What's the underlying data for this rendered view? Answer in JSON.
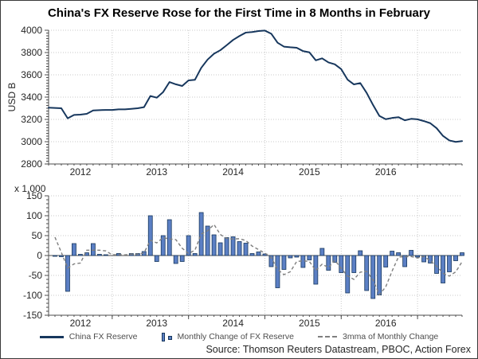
{
  "title": "China's FX Reserve Rose for the First Time in 8 Months in February",
  "source_note": "Source: Thomson Reuters Datastream, PBOC, Action Forex",
  "colors": {
    "reserve_line": "#17375D",
    "bar_fill": "#5B7FC4",
    "bar_border": "#17375D",
    "mma_line": "#7F7F7F",
    "grid": "#C9C9C9",
    "axis": "#4D4D4D",
    "tick_text": "#262626"
  },
  "legend": {
    "items": [
      {
        "label": "China FX Reserve",
        "swatch": "line"
      },
      {
        "label": "Monthly Change of FX Reserve",
        "swatch": "bars"
      },
      {
        "label": "3mma of Monthly Change",
        "swatch": "dashes"
      }
    ]
  },
  "chart_data": [
    {
      "type": "line",
      "name": "China FX Reserve",
      "ylabel": "USD B",
      "ylim": [
        2800,
        4000
      ],
      "ytick_step": 200,
      "ytick_labels": [
        "2800",
        "3000",
        "3200",
        "3400",
        "3600",
        "3800",
        "4000"
      ],
      "x_start": "2011-09",
      "x_end": "2017-02",
      "x_freq": "monthly",
      "xtick_labels": [
        "2012",
        "2013",
        "2014",
        "2015",
        "2016"
      ],
      "grid": true,
      "values": [
        3305,
        3303,
        3300,
        3210,
        3240,
        3243,
        3250,
        3280,
        3283,
        3285,
        3285,
        3290,
        3290,
        3295,
        3300,
        3310,
        3410,
        3395,
        3445,
        3535,
        3515,
        3500,
        3550,
        3555,
        3663,
        3737,
        3789,
        3821,
        3866,
        3913,
        3948,
        3979,
        3984,
        3993,
        3997,
        3969,
        3888,
        3853,
        3847,
        3843,
        3813,
        3802,
        3730,
        3748,
        3711,
        3694,
        3651,
        3557,
        3514,
        3526,
        3438,
        3330,
        3231,
        3202,
        3213,
        3220,
        3192,
        3205,
        3201,
        3185,
        3166,
        3121,
        3052,
        3011,
        2998,
        3005
      ]
    },
    {
      "type": "bar",
      "ylabel": "x 1,000",
      "ylim": [
        -150,
        150
      ],
      "ytick_step": 50,
      "ytick_labels": [
        "-150",
        "-100",
        "-50",
        "0",
        "50",
        "100",
        "150"
      ],
      "x_start": "2011-10",
      "x_end": "2017-02",
      "x_freq": "monthly",
      "xtick_labels": [
        "2012",
        "2013",
        "2014",
        "2015",
        "2016"
      ],
      "grid": true,
      "series": [
        {
          "name": "Monthly Change of FX Reserve",
          "type": "bar",
          "values": [
            -2,
            -3,
            -90,
            30,
            3,
            7,
            30,
            3,
            2,
            0,
            5,
            0,
            5,
            5,
            10,
            100,
            -15,
            50,
            90,
            -20,
            -15,
            50,
            5,
            108,
            74,
            52,
            32,
            45,
            47,
            35,
            31,
            5,
            9,
            4,
            -28,
            -81,
            -35,
            -6,
            -4,
            -30,
            -11,
            -72,
            18,
            -37,
            -17,
            -43,
            -94,
            -43,
            12,
            -88,
            -108,
            -99,
            -29,
            11,
            7,
            -28,
            13,
            -4,
            -16,
            -19,
            -45,
            -69,
            -41,
            -13,
            7
          ]
        },
        {
          "name": "3mma of Monthly Change",
          "type": "dashed-line",
          "values": [
            46,
            8,
            -31.7,
            -21,
            -19,
            13.3,
            13.3,
            13.3,
            11.7,
            1.7,
            2.3,
            1.7,
            3.3,
            3.3,
            6.7,
            38.3,
            31.7,
            45,
            41.7,
            40,
            18.3,
            5,
            13.3,
            54.3,
            62.3,
            78,
            52.7,
            43,
            41.3,
            42.3,
            37.7,
            23.7,
            15,
            6,
            -5,
            -35,
            -48,
            -40.7,
            -15,
            -13.3,
            -15,
            -37.7,
            -21.7,
            -30.3,
            -12,
            -32.3,
            -51.3,
            -60,
            -41.7,
            -39.7,
            -61.3,
            -98.3,
            -78.7,
            -39,
            -3.7,
            -3.3,
            -2.7,
            -6.3,
            -2.3,
            -13,
            -26.7,
            -44.3,
            -51.7,
            -41,
            -15.7
          ]
        }
      ]
    }
  ]
}
